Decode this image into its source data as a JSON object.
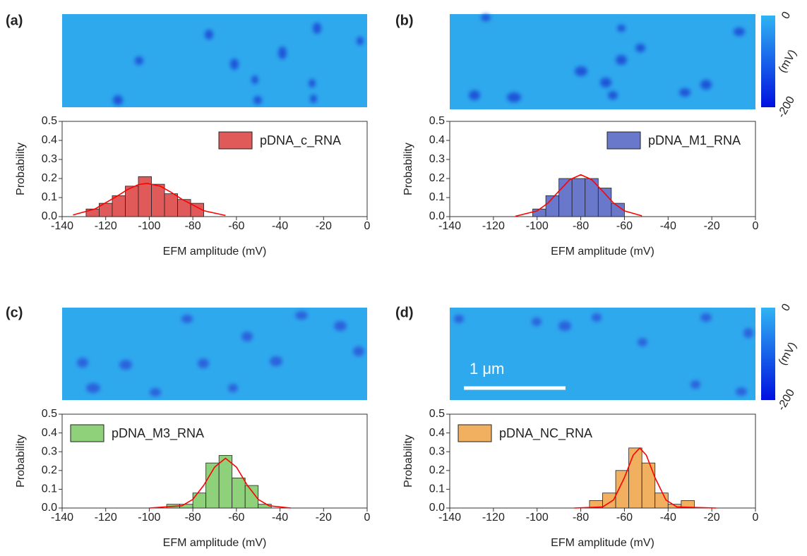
{
  "chart_data": [
    {
      "type": "histogram",
      "panel_label": "(a)",
      "xlabel": "EFM amplitude (mV)",
      "ylabel": "Probability",
      "xlim": [
        -140,
        0
      ],
      "ylim": [
        0,
        0.5
      ],
      "xticks": [
        -140,
        -120,
        -100,
        -80,
        -60,
        -40,
        -20,
        0
      ],
      "yticks": [
        {
          "value": 0,
          "label": "0.0"
        },
        0.1,
        0.2,
        0.3,
        0.4,
        0.5
      ],
      "legend": "upper right",
      "bins": [
        -129,
        -123,
        -117,
        -111,
        -105,
        -99,
        -93,
        -87,
        -81,
        -75
      ],
      "series": [
        {
          "name": "pDNA_c_RNA",
          "color": "#e05a5a",
          "values": [
            0.04,
            0.07,
            0.11,
            0.16,
            0.21,
            0.17,
            0.12,
            0.09,
            0.07
          ]
        }
      ],
      "fit": {
        "color": "#ff0000",
        "x": [
          -135,
          -125,
          -115,
          -110,
          -105,
          -101,
          -95,
          -90,
          -85,
          -75,
          -65
        ],
        "y": [
          0.009,
          0.04,
          0.106,
          0.142,
          0.168,
          0.175,
          0.16,
          0.128,
          0.091,
          0.031,
          0.006
        ]
      }
    },
    {
      "type": "histogram",
      "panel_label": "(b)",
      "xlabel": "EFM amplitude (mV)",
      "ylabel": "Probability",
      "xlim": [
        -140,
        0
      ],
      "ylim": [
        0,
        0.5
      ],
      "xticks": [
        -140,
        -120,
        -100,
        -80,
        -60,
        -40,
        -20,
        0
      ],
      "yticks": [
        {
          "value": 0,
          "label": "0.0"
        },
        0.1,
        0.2,
        0.3,
        0.4,
        0.5
      ],
      "legend": "upper right",
      "bins": [
        -102,
        -96,
        -90,
        -84,
        -78,
        -72,
        -66,
        -60
      ],
      "series": [
        {
          "name": "pDNA_M1_RNA",
          "color": "#6a78cc",
          "values": [
            0.04,
            0.11,
            0.2,
            0.2,
            0.2,
            0.15,
            0.07
          ]
        }
      ],
      "fit": {
        "color": "#ff0000",
        "x": [
          -110,
          -100,
          -95,
          -90,
          -85,
          -80,
          -75,
          -70,
          -65,
          -60,
          -52
        ],
        "y": [
          0.002,
          0.03,
          0.071,
          0.134,
          0.194,
          0.22,
          0.194,
          0.134,
          0.071,
          0.03,
          0.004
        ]
      },
      "colorbar": {
        "label": "(mV)",
        "lim": [
          0,
          -200
        ],
        "ticks": [
          0,
          -200
        ]
      }
    },
    {
      "type": "histogram",
      "panel_label": "(c)",
      "xlabel": "EFM amplitude (mV)",
      "ylabel": "Probability",
      "xlim": [
        -140,
        0
      ],
      "ylim": [
        0,
        0.5
      ],
      "xticks": [
        -140,
        -120,
        -100,
        -80,
        -60,
        -40,
        -20,
        0
      ],
      "yticks": [
        {
          "value": 0,
          "label": "0.0"
        },
        0.1,
        0.2,
        0.3,
        0.4,
        0.5
      ],
      "legend": "upper left",
      "bins": [
        -92,
        -86,
        -80,
        -74,
        -68,
        -62,
        -56,
        -50,
        -44
      ],
      "series": [
        {
          "name": "pDNA_M3_RNA",
          "color": "#8fd07a",
          "values": [
            0.02,
            0.02,
            0.08,
            0.24,
            0.28,
            0.16,
            0.12,
            0.02
          ]
        }
      ],
      "fit": {
        "color": "#ff0000",
        "x": [
          -100,
          -85,
          -80,
          -75,
          -70,
          -65,
          -60,
          -55,
          -50,
          -45,
          -35
        ],
        "y": [
          0,
          0.012,
          0.046,
          0.121,
          0.218,
          0.265,
          0.218,
          0.121,
          0.046,
          0.012,
          0
        ]
      }
    },
    {
      "type": "histogram",
      "panel_label": "(d)",
      "xlabel": "EFM amplitude (mV)",
      "ylabel": "Probability",
      "xlim": [
        -140,
        0
      ],
      "ylim": [
        0,
        0.5
      ],
      "xticks": [
        -140,
        -120,
        -100,
        -80,
        -60,
        -40,
        -20,
        0
      ],
      "yticks": [
        {
          "value": 0,
          "label": "0.0"
        },
        0.1,
        0.2,
        0.3,
        0.4,
        0.5
      ],
      "legend": "upper left",
      "bins": [
        -76,
        -70,
        -64,
        -58,
        -52,
        -46,
        -40,
        -34,
        -28
      ],
      "series": [
        {
          "name": "pDNA_NC_RNA",
          "color": "#f0b060",
          "values": [
            0.04,
            0.08,
            0.2,
            0.32,
            0.24,
            0.08,
            0.02,
            0.04
          ]
        }
      ],
      "fit": {
        "color": "#ff0000",
        "x": [
          -83,
          -70,
          -65,
          -60,
          -56,
          -53,
          -50,
          -46,
          -41,
          -36,
          -18
        ],
        "y": [
          0,
          0.006,
          0.043,
          0.162,
          0.282,
          0.32,
          0.282,
          0.162,
          0.043,
          0.006,
          0
        ]
      },
      "colorbar": {
        "label": "(mV)",
        "lim": [
          0,
          -200
        ],
        "ticks": [
          0,
          -200
        ]
      },
      "scale_bar": "1 μm"
    }
  ]
}
